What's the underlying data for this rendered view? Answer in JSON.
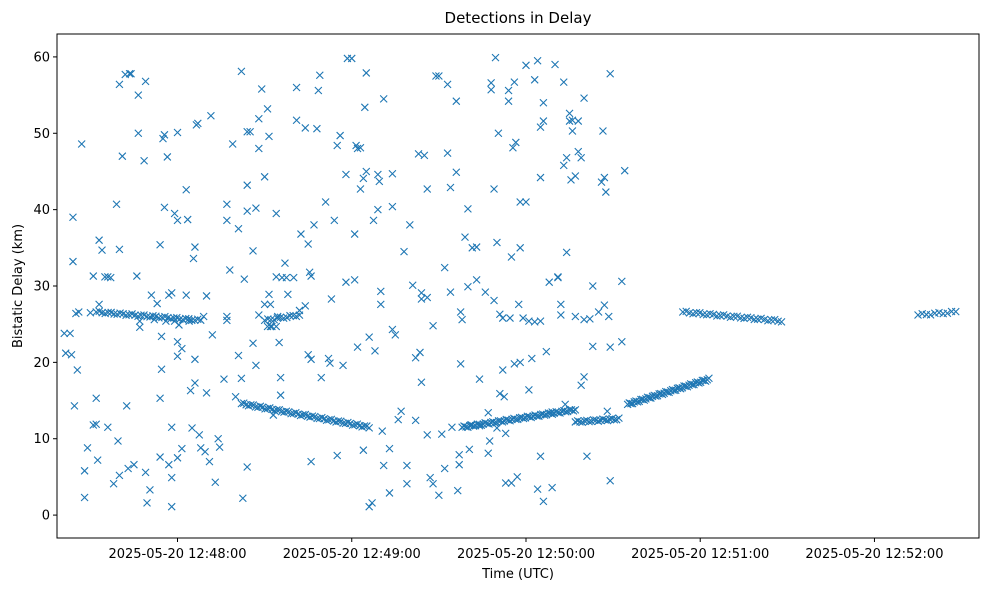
{
  "chart_data": {
    "type": "scatter",
    "title": "Detections in Delay",
    "xlabel": "Time (UTC)",
    "ylabel": "Bistatic Delay (km)",
    "marker": "x",
    "color": "#1f77b4",
    "x_unit": "seconds after 2025-05-20 12:47:00 UTC",
    "xlim": [
      18.5,
      336
    ],
    "ylim": [
      -3,
      63
    ],
    "x_ticks": [
      {
        "value": 60,
        "label": "2025-05-20 12:48:00"
      },
      {
        "value": 120,
        "label": "2025-05-20 12:49:00"
      },
      {
        "value": 180,
        "label": "2025-05-20 12:50:00"
      },
      {
        "value": 240,
        "label": "2025-05-20 12:51:00"
      },
      {
        "value": 300,
        "label": "2025-05-20 12:52:00"
      }
    ],
    "y_ticks": [
      {
        "value": 0,
        "label": "0"
      },
      {
        "value": 10,
        "label": "10"
      },
      {
        "value": 20,
        "label": "20"
      },
      {
        "value": 30,
        "label": "30"
      },
      {
        "value": 40,
        "label": "40"
      },
      {
        "value": 50,
        "label": "50"
      },
      {
        "value": 60,
        "label": "60"
      }
    ],
    "tracks": [
      {
        "name": "track-1",
        "x_start": 32,
        "x_end": 68,
        "y_start": 26.6,
        "y_end": 25.5,
        "count": 36
      },
      {
        "name": "track-2",
        "x_start": 90,
        "x_end": 102,
        "y_start": 25.5,
        "y_end": 26.2,
        "count": 12
      },
      {
        "name": "track-3",
        "x_start": 82,
        "x_end": 126,
        "y_start": 14.6,
        "y_end": 11.5,
        "count": 55
      },
      {
        "name": "track-4",
        "x_start": 158,
        "x_end": 197,
        "y_start": 11.5,
        "y_end": 13.8,
        "count": 60
      },
      {
        "name": "track-5",
        "x_start": 197,
        "x_end": 212,
        "y_start": 12.2,
        "y_end": 12.6,
        "count": 20
      },
      {
        "name": "track-6",
        "x_start": 215,
        "x_end": 243,
        "y_start": 14.5,
        "y_end": 17.8,
        "count": 50
      },
      {
        "name": "track-7",
        "x_start": 234,
        "x_end": 268,
        "y_start": 26.6,
        "y_end": 25.4,
        "count": 30
      },
      {
        "name": "track-8",
        "x_start": 315,
        "x_end": 328,
        "y_start": 26.2,
        "y_end": 26.6,
        "count": 10
      }
    ],
    "scatter_points": [
      [
        21,
        23.8
      ],
      [
        21.5,
        21.2
      ],
      [
        23,
        23.8
      ],
      [
        23.5,
        21
      ],
      [
        24,
        39
      ],
      [
        24,
        33.2
      ],
      [
        24.5,
        14.3
      ],
      [
        25,
        26.4
      ],
      [
        25.5,
        19
      ],
      [
        26,
        26.6
      ],
      [
        27,
        48.6
      ],
      [
        28,
        2.3
      ],
      [
        28,
        5.8
      ],
      [
        29,
        8.8
      ],
      [
        30,
        26.5
      ],
      [
        31,
        31.3
      ],
      [
        31,
        11.8
      ],
      [
        32,
        15.3
      ],
      [
        32,
        11.9
      ],
      [
        32.5,
        7.2
      ],
      [
        33,
        36
      ],
      [
        33,
        27.6
      ],
      [
        34,
        34.7
      ],
      [
        35,
        31.2
      ],
      [
        36,
        31.2
      ],
      [
        36,
        11.5
      ],
      [
        37,
        31.1
      ],
      [
        38,
        4.1
      ],
      [
        39,
        40.7
      ],
      [
        39.5,
        9.7
      ],
      [
        40,
        56.4
      ],
      [
        40,
        34.8
      ],
      [
        40,
        5.2
      ],
      [
        41,
        47
      ],
      [
        42,
        57.7
      ],
      [
        42.5,
        14.3
      ],
      [
        43,
        6.1
      ],
      [
        43.5,
        57.8
      ],
      [
        44,
        57.8
      ],
      [
        45,
        6.6
      ],
      [
        46,
        31.3
      ],
      [
        46.5,
        50
      ],
      [
        46.5,
        55
      ],
      [
        47,
        25.4
      ],
      [
        47,
        24.6
      ],
      [
        48.5,
        46.4
      ],
      [
        49,
        56.8
      ],
      [
        49,
        5.6
      ],
      [
        49.5,
        1.6
      ],
      [
        50.5,
        3.3
      ],
      [
        51,
        28.8
      ],
      [
        52,
        25.6
      ],
      [
        53,
        27.7
      ],
      [
        54,
        35.4
      ],
      [
        54,
        15.3
      ],
      [
        54,
        7.6
      ],
      [
        54.5,
        23.4
      ],
      [
        54.5,
        19.1
      ],
      [
        55,
        49.3
      ],
      [
        55.5,
        49.8
      ],
      [
        55.5,
        40.3
      ],
      [
        56,
        25.4
      ],
      [
        56.5,
        46.9
      ],
      [
        57,
        28.8
      ],
      [
        57,
        6.6
      ],
      [
        58,
        11.5
      ],
      [
        58,
        4.9
      ],
      [
        58,
        1.1
      ],
      [
        58,
        29.1
      ],
      [
        59,
        39.5
      ],
      [
        59,
        25.4
      ],
      [
        60,
        38.6
      ],
      [
        60,
        22.7
      ],
      [
        60,
        20.8
      ],
      [
        60,
        7.5
      ],
      [
        60,
        50.1
      ],
      [
        60.5,
        24.9
      ],
      [
        61.5,
        21.8
      ],
      [
        61.5,
        8.7
      ],
      [
        63,
        42.6
      ],
      [
        63,
        28.8
      ],
      [
        63.5,
        38.7
      ],
      [
        64,
        25.4
      ],
      [
        64.5,
        16.3
      ],
      [
        65,
        11.4
      ],
      [
        65.5,
        33.6
      ],
      [
        66,
        35.1
      ],
      [
        66,
        20.4
      ],
      [
        66,
        17.3
      ],
      [
        66.5,
        51.1
      ],
      [
        67,
        51.3
      ],
      [
        67.5,
        10.5
      ],
      [
        68,
        8.8
      ],
      [
        69,
        26
      ],
      [
        69.5,
        8.3
      ],
      [
        70,
        28.7
      ],
      [
        70,
        16
      ],
      [
        71,
        7
      ],
      [
        71.5,
        52.3
      ],
      [
        72,
        23.6
      ],
      [
        73,
        4.3
      ],
      [
        74,
        10
      ],
      [
        74.5,
        8.9
      ],
      [
        76,
        17.8
      ],
      [
        77,
        40.7
      ],
      [
        77,
        38.6
      ],
      [
        77,
        26
      ],
      [
        77,
        25.5
      ],
      [
        78,
        32.1
      ],
      [
        79,
        48.6
      ],
      [
        80,
        15.5
      ],
      [
        81,
        37.5
      ],
      [
        81,
        20.9
      ],
      [
        82,
        58.1
      ],
      [
        82,
        17.9
      ],
      [
        82.5,
        2.2
      ],
      [
        83,
        30.9
      ],
      [
        84,
        39.8
      ],
      [
        84,
        6.3
      ],
      [
        84,
        43.2
      ],
      [
        84,
        50.2
      ],
      [
        85,
        50.2
      ],
      [
        86,
        34.6
      ],
      [
        86,
        22.5
      ],
      [
        87,
        40.2
      ],
      [
        87,
        19.6
      ],
      [
        88,
        51.9
      ],
      [
        88,
        48
      ],
      [
        88,
        26.2
      ],
      [
        89,
        55.8
      ],
      [
        90,
        44.3
      ],
      [
        90,
        27.6
      ],
      [
        91,
        24.7
      ],
      [
        91,
        53.2
      ],
      [
        91.5,
        49.6
      ],
      [
        91.5,
        28.9
      ],
      [
        92,
        24.7
      ],
      [
        92,
        27.6
      ],
      [
        92.5,
        24.7
      ],
      [
        93,
        13.1
      ],
      [
        94,
        24.7
      ],
      [
        94,
        39.5
      ],
      [
        94,
        31.2
      ],
      [
        94.5,
        26
      ],
      [
        95,
        22.6
      ],
      [
        95.5,
        18
      ],
      [
        95.5,
        15.7
      ],
      [
        96,
        31.1
      ],
      [
        97,
        33
      ],
      [
        97.5,
        31.1
      ],
      [
        98,
        28.9
      ],
      [
        100,
        31.1
      ],
      [
        101,
        56
      ],
      [
        101,
        51.7
      ],
      [
        102,
        26.8
      ],
      [
        102.5,
        36.8
      ],
      [
        104,
        50.7
      ],
      [
        104,
        27.4
      ],
      [
        105,
        35.5
      ],
      [
        105,
        21
      ],
      [
        105.5,
        31.8
      ],
      [
        106,
        31.3
      ],
      [
        106,
        20.4
      ],
      [
        106,
        7
      ],
      [
        107,
        38
      ],
      [
        108,
        50.6
      ],
      [
        108.5,
        55.6
      ],
      [
        109,
        57.6
      ],
      [
        109.5,
        18
      ],
      [
        111,
        41
      ],
      [
        112,
        20.5
      ],
      [
        112.5,
        19.9
      ],
      [
        113,
        28.3
      ],
      [
        114,
        38.6
      ],
      [
        115,
        7.8
      ],
      [
        115,
        48.4
      ],
      [
        116,
        49.7
      ],
      [
        117,
        19.6
      ],
      [
        118,
        44.6
      ],
      [
        118,
        30.5
      ],
      [
        118.5,
        59.8
      ],
      [
        120,
        59.8
      ],
      [
        121,
        30.8
      ],
      [
        121,
        36.8
      ],
      [
        121.5,
        48.4
      ],
      [
        122,
        48
      ],
      [
        122,
        22
      ],
      [
        123,
        48.1
      ],
      [
        123,
        42.7
      ],
      [
        124,
        44.1
      ],
      [
        124,
        8.5
      ],
      [
        124.5,
        53.4
      ],
      [
        125,
        57.9
      ],
      [
        125,
        45
      ],
      [
        126,
        23.3
      ],
      [
        126,
        1.1
      ],
      [
        127,
        1.6
      ],
      [
        127.5,
        38.6
      ],
      [
        128,
        21.5
      ],
      [
        129,
        44.6
      ],
      [
        129,
        40
      ],
      [
        129.5,
        43.7
      ],
      [
        130,
        29.3
      ],
      [
        130,
        27.6
      ],
      [
        130.5,
        11
      ],
      [
        131,
        6.5
      ],
      [
        131,
        54.5
      ],
      [
        133,
        8.7
      ],
      [
        133,
        2.9
      ],
      [
        134,
        40.4
      ],
      [
        134,
        24.3
      ],
      [
        134,
        44.7
      ],
      [
        135,
        23.6
      ],
      [
        136,
        12.5
      ],
      [
        137,
        13.6
      ],
      [
        138,
        34.5
      ],
      [
        139,
        4.1
      ],
      [
        139,
        6.5
      ],
      [
        140,
        38
      ],
      [
        141,
        30.1
      ],
      [
        142,
        20.6
      ],
      [
        142,
        12.4
      ],
      [
        143,
        47.3
      ],
      [
        143.5,
        21.3
      ],
      [
        144,
        17.4
      ],
      [
        144,
        29.1
      ],
      [
        144,
        28.3
      ],
      [
        145,
        47.1
      ],
      [
        146,
        42.7
      ],
      [
        146,
        28.5
      ],
      [
        146,
        10.5
      ],
      [
        147,
        4.9
      ],
      [
        148,
        24.8
      ],
      [
        148,
        4.1
      ],
      [
        149,
        57.5
      ],
      [
        150,
        57.5
      ],
      [
        150,
        2.6
      ],
      [
        151,
        10.6
      ],
      [
        152,
        6.1
      ],
      [
        152,
        32.4
      ],
      [
        153,
        47.4
      ],
      [
        153,
        56.4
      ],
      [
        154,
        42.9
      ],
      [
        154,
        29.2
      ],
      [
        154.5,
        11.5
      ],
      [
        156,
        54.2
      ],
      [
        156,
        44.9
      ],
      [
        156.5,
        3.2
      ],
      [
        157,
        6.6
      ],
      [
        157,
        7.9
      ],
      [
        157.5,
        19.8
      ],
      [
        157.5,
        26.6
      ],
      [
        158,
        25.6
      ],
      [
        159,
        36.4
      ],
      [
        160,
        40.1
      ],
      [
        160,
        29.9
      ],
      [
        160.5,
        8.6
      ],
      [
        161,
        11.8
      ],
      [
        161.5,
        35
      ],
      [
        163,
        35.1
      ],
      [
        163,
        30.8
      ],
      [
        164,
        17.8
      ],
      [
        164,
        11.7
      ],
      [
        166,
        29.2
      ],
      [
        167,
        13.4
      ],
      [
        167,
        8.1
      ],
      [
        167.5,
        9.7
      ],
      [
        168,
        55.7
      ],
      [
        168,
        56.6
      ],
      [
        169,
        42.7
      ],
      [
        169,
        28.1
      ],
      [
        169.5,
        59.9
      ],
      [
        170,
        35.7
      ],
      [
        170,
        11.4
      ],
      [
        170.5,
        50
      ],
      [
        171,
        26.3
      ],
      [
        171,
        15.9
      ],
      [
        172,
        25.8
      ],
      [
        172,
        19
      ],
      [
        172.5,
        15.5
      ],
      [
        173,
        10.7
      ],
      [
        173,
        4.2
      ],
      [
        174,
        54.2
      ],
      [
        174,
        55.6
      ],
      [
        174.5,
        25.8
      ],
      [
        175,
        4.2
      ],
      [
        175,
        33.8
      ],
      [
        175.5,
        48.1
      ],
      [
        176,
        19.8
      ],
      [
        176,
        56.7
      ],
      [
        176.5,
        48.8
      ],
      [
        177,
        5
      ],
      [
        177.5,
        27.6
      ],
      [
        178,
        41
      ],
      [
        178,
        35
      ],
      [
        178,
        20
      ],
      [
        179,
        25.8
      ],
      [
        180,
        58.9
      ],
      [
        180,
        41
      ],
      [
        181,
        16.4
      ],
      [
        181,
        25.4
      ],
      [
        182,
        20.5
      ],
      [
        183,
        57
      ],
      [
        183,
        25.3
      ],
      [
        184,
        59.5
      ],
      [
        184,
        3.4
      ],
      [
        185,
        7.7
      ],
      [
        185,
        25.4
      ],
      [
        185,
        44.2
      ],
      [
        185,
        50.8
      ],
      [
        186,
        1.8
      ],
      [
        186,
        54
      ],
      [
        186,
        51.6
      ],
      [
        187,
        21.4
      ],
      [
        188,
        30.5
      ],
      [
        189,
        13.5
      ],
      [
        189,
        3.6
      ],
      [
        190,
        59
      ],
      [
        191,
        31.2
      ],
      [
        191,
        31.1
      ],
      [
        192,
        27.6
      ],
      [
        192,
        26.2
      ],
      [
        193,
        56.7
      ],
      [
        193,
        45.8
      ],
      [
        193.5,
        14.5
      ],
      [
        194,
        46.8
      ],
      [
        194,
        34.4
      ],
      [
        195,
        52.6
      ],
      [
        195,
        51.6
      ],
      [
        195.5,
        43.9
      ],
      [
        196,
        51.7
      ],
      [
        196,
        50.3
      ],
      [
        197,
        26
      ],
      [
        197,
        44.4
      ],
      [
        198,
        51.6
      ],
      [
        198,
        47.6
      ],
      [
        199,
        46.8
      ],
      [
        199,
        17
      ],
      [
        200,
        18.1
      ],
      [
        200,
        25.6
      ],
      [
        200,
        54.6
      ],
      [
        201,
        7.7
      ],
      [
        202,
        25.7
      ],
      [
        203,
        22.1
      ],
      [
        203,
        30
      ],
      [
        205,
        26.6
      ],
      [
        206,
        43.6
      ],
      [
        206.5,
        50.3
      ],
      [
        207,
        27.5
      ],
      [
        207,
        44.2
      ],
      [
        207.5,
        42.3
      ],
      [
        208,
        13.6
      ],
      [
        208.5,
        26
      ],
      [
        209,
        22
      ],
      [
        209,
        57.8
      ],
      [
        209,
        4.5
      ],
      [
        213,
        22.7
      ],
      [
        213,
        30.6
      ],
      [
        214,
        45.1
      ]
    ]
  }
}
